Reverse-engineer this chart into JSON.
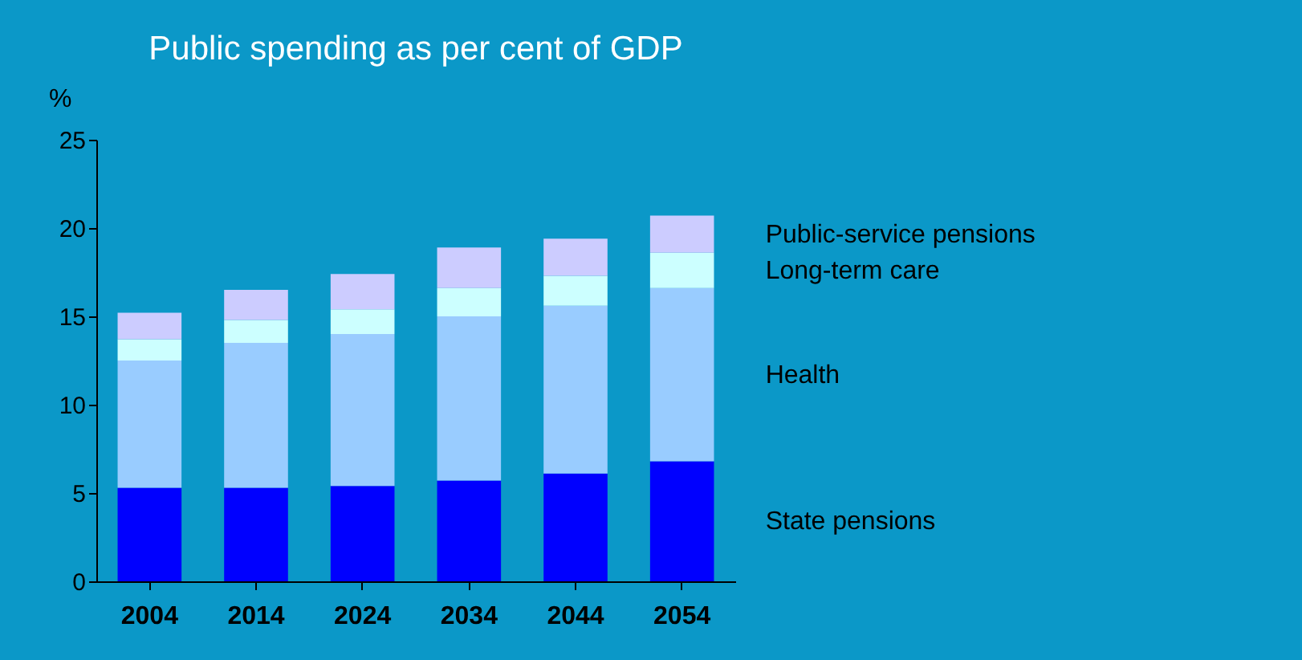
{
  "chart_data": {
    "type": "bar",
    "title": "Public spending as per cent of GDP",
    "ylabel": "%",
    "stacked": true,
    "categories": [
      "2004",
      "2014",
      "2024",
      "2034",
      "2044",
      "2054"
    ],
    "series": [
      {
        "name": "State pensions",
        "color": "#0000ff",
        "values": [
          5.3,
          5.3,
          5.4,
          5.7,
          6.1,
          6.8
        ]
      },
      {
        "name": "Health",
        "color": "#99ccff",
        "values": [
          7.2,
          8.2,
          8.6,
          9.3,
          9.5,
          9.8
        ]
      },
      {
        "name": "Long-term care",
        "color": "#ccffff",
        "values": [
          1.2,
          1.3,
          1.4,
          1.6,
          1.7,
          2.0
        ]
      },
      {
        "name": "Public-service pensions",
        "color": "#ccccff",
        "values": [
          1.5,
          1.7,
          2.0,
          2.3,
          2.1,
          2.1
        ]
      }
    ],
    "ylim": [
      0,
      25
    ],
    "yticks": [
      0,
      5,
      10,
      15,
      20,
      25
    ],
    "grid": false,
    "legend": "right"
  }
}
